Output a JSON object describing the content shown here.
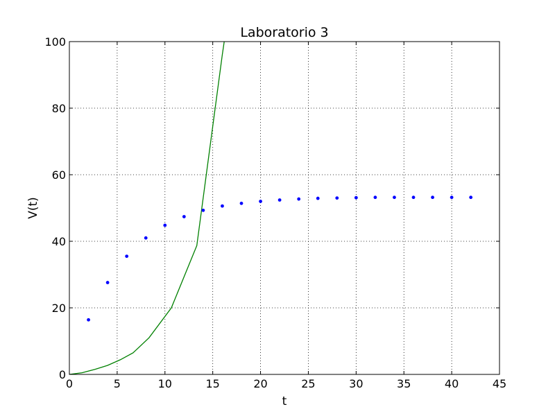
{
  "chart_data": {
    "type": "line",
    "title": "Laboratorio 3",
    "xlabel": "t",
    "ylabel": "V(t)",
    "xlim": [
      0,
      45
    ],
    "ylim": [
      0,
      100
    ],
    "grid": true,
    "grid_style": "dotted",
    "xticks": [
      0,
      5,
      10,
      15,
      20,
      25,
      30,
      35,
      40,
      45
    ],
    "yticks": [
      0,
      20,
      40,
      60,
      80,
      100
    ],
    "series": [
      {
        "style": "points",
        "color": "#0000ff",
        "x": [
          2,
          4,
          6,
          8,
          10,
          12,
          14,
          16,
          18,
          20,
          22,
          24,
          26,
          28,
          30,
          32,
          34,
          36,
          38,
          40,
          42
        ],
        "y": [
          16.4,
          27.6,
          35.5,
          41.0,
          44.8,
          47.4,
          49.3,
          50.6,
          51.4,
          52.0,
          52.4,
          52.7,
          52.9,
          53.0,
          53.1,
          53.2,
          53.2,
          53.2,
          53.2,
          53.2,
          53.2
        ]
      },
      {
        "style": "line",
        "color": "#008000",
        "x": [
          0,
          1.33,
          2.67,
          4.0,
          5.33,
          6.67,
          8.33,
          10.67,
          13.33,
          16.0,
          16.2
        ],
        "y": [
          0,
          0.5,
          1.5,
          2.7,
          4.4,
          6.5,
          11.0,
          20.0,
          38.7,
          96.0,
          100
        ]
      }
    ]
  }
}
